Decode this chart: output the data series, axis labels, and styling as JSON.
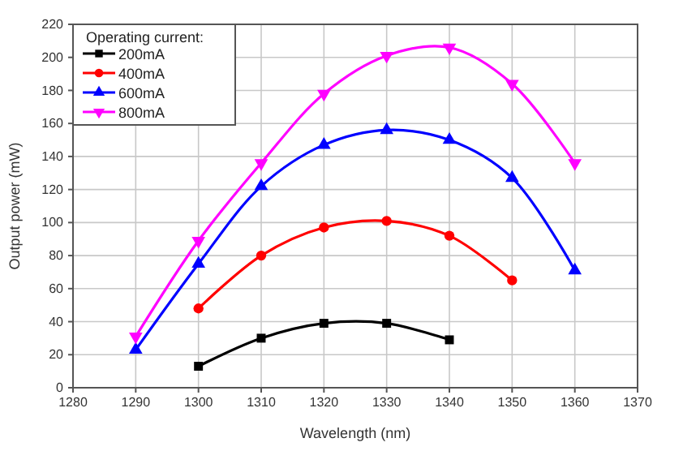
{
  "chart_data": {
    "type": "line",
    "xlabel": "Wavelength (nm)",
    "ylabel": "Output power (mW)",
    "legend_title": "Operating current:",
    "xlim": [
      1280,
      1370
    ],
    "xticks": [
      1280,
      1290,
      1300,
      1310,
      1320,
      1330,
      1340,
      1350,
      1360,
      1370
    ],
    "ylim": [
      0,
      220
    ],
    "yticks": [
      0,
      20,
      40,
      60,
      80,
      100,
      120,
      140,
      160,
      180,
      200,
      220
    ],
    "grid": true,
    "legend": "top left",
    "line_style": "solid",
    "series": [
      {
        "name": "200mA",
        "color": "#000000",
        "marker": "square",
        "x": [
          1300,
          1310,
          1320,
          1330,
          1340
        ],
        "values": [
          13,
          30,
          39,
          39,
          29
        ]
      },
      {
        "name": "400mA",
        "color": "#ff0000",
        "marker": "circle",
        "x": [
          1300,
          1310,
          1320,
          1330,
          1340,
          1350
        ],
        "values": [
          48,
          80,
          97,
          101,
          92,
          65
        ]
      },
      {
        "name": "600mA",
        "color": "#0000ff",
        "marker": "triangle",
        "x": [
          1290,
          1300,
          1310,
          1320,
          1330,
          1340,
          1350,
          1360
        ],
        "values": [
          23,
          75,
          122,
          147,
          156,
          150,
          127,
          71
        ]
      },
      {
        "name": "800mA",
        "color": "#ff00ff",
        "marker": "triangle-down",
        "x": [
          1290,
          1300,
          1310,
          1320,
          1330,
          1340,
          1350,
          1360
        ],
        "values": [
          31,
          89,
          136,
          178,
          201,
          206,
          184,
          136
        ]
      }
    ]
  }
}
